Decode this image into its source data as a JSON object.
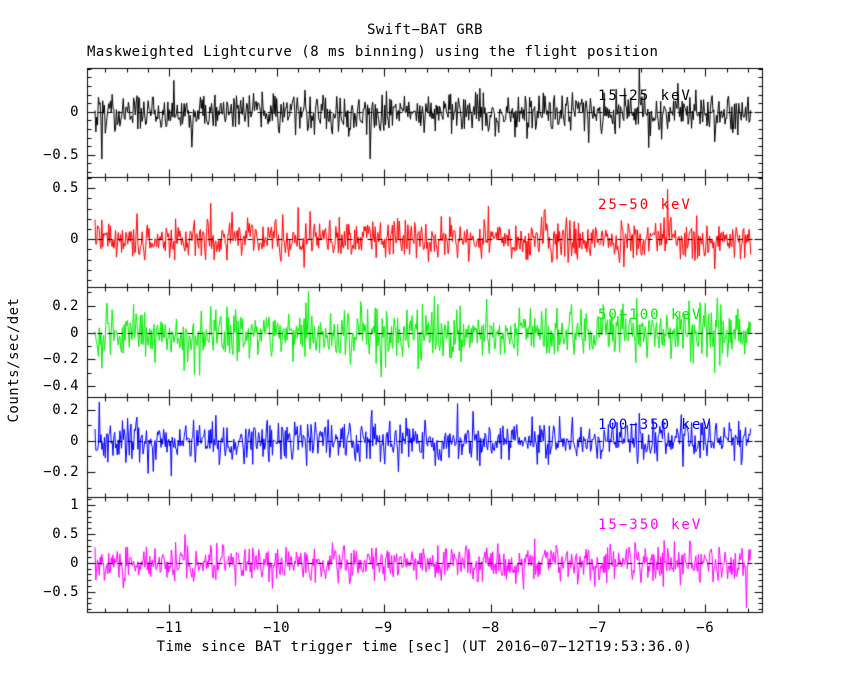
{
  "title": "Swift−BAT GRB",
  "subtitle": "Maskweighted Lightcurve (8 ms binning) using the flight position",
  "xlabel": "Time since BAT trigger time [sec] (UT 2016−07−12T19:53:36.0)",
  "ylabel": "Counts/sec/det",
  "chart_data": {
    "type": "line",
    "description": "Five stacked Swift-BAT maskweighted lightcurve panels, each showing zero-centered noise (no burst visible) in a different energy band, with a dashed black line at 0 counts/sec/det.",
    "xlim": [
      -11.77,
      -5.47
    ],
    "x_major_ticks": [
      -11,
      -10,
      -9,
      -8,
      -7,
      -6
    ],
    "x_tick_labels": [
      "−11",
      "−10",
      "−9",
      "−8",
      "−7",
      "−6"
    ],
    "x_minor_step": 0.2,
    "bin_seconds": 0.008,
    "data_x_start": -11.7,
    "data_x_end": -5.58,
    "zero_line": {
      "value": 0,
      "style": "dashed",
      "color": "#000000"
    },
    "panels": [
      {
        "label": "15−25 keV",
        "color": "#000000",
        "ylim": [
          -0.76,
          0.51
        ],
        "ticks": [
          {
            "v": 0,
            "t": "0"
          },
          {
            "v": -0.5,
            "t": "−0.5"
          }
        ],
        "minor_step": 0.1,
        "noise_sigma": 0.115,
        "seed": 101
      },
      {
        "label": "25−50 keV",
        "color": "#ff0000",
        "ylim": [
          -0.47,
          0.61
        ],
        "ticks": [
          {
            "v": 0.5,
            "t": "0.5"
          },
          {
            "v": 0,
            "t": "0"
          }
        ],
        "minor_step": 0.1,
        "noise_sigma": 0.1,
        "seed": 202
      },
      {
        "label": "50−100 keV",
        "color": "#00ee00",
        "ylim": [
          -0.48,
          0.34
        ],
        "ticks": [
          {
            "v": 0.2,
            "t": "0.2"
          },
          {
            "v": 0,
            "t": "0"
          },
          {
            "v": -0.2,
            "t": "−0.2"
          },
          {
            "v": -0.4,
            "t": "−0.4"
          }
        ],
        "minor_step": 0.1,
        "noise_sigma": 0.095,
        "seed": 303
      },
      {
        "label": "100−350 keV",
        "color": "#0000ff",
        "ylim": [
          -0.36,
          0.28
        ],
        "ticks": [
          {
            "v": 0.2,
            "t": "0.2"
          },
          {
            "v": 0,
            "t": "0"
          },
          {
            "v": -0.2,
            "t": "−0.2"
          }
        ],
        "minor_step": 0.1,
        "noise_sigma": 0.068,
        "seed": 404
      },
      {
        "label": "15−350 keV",
        "color": "#ff00ff",
        "ylim": [
          -0.85,
          1.14
        ],
        "ticks": [
          {
            "v": 1,
            "t": "1"
          },
          {
            "v": 0.5,
            "t": "0.5"
          },
          {
            "v": 0,
            "t": "0"
          },
          {
            "v": -0.5,
            "t": "−0.5"
          }
        ],
        "minor_step": 0.1,
        "noise_sigma": 0.16,
        "seed": 505
      }
    ]
  }
}
